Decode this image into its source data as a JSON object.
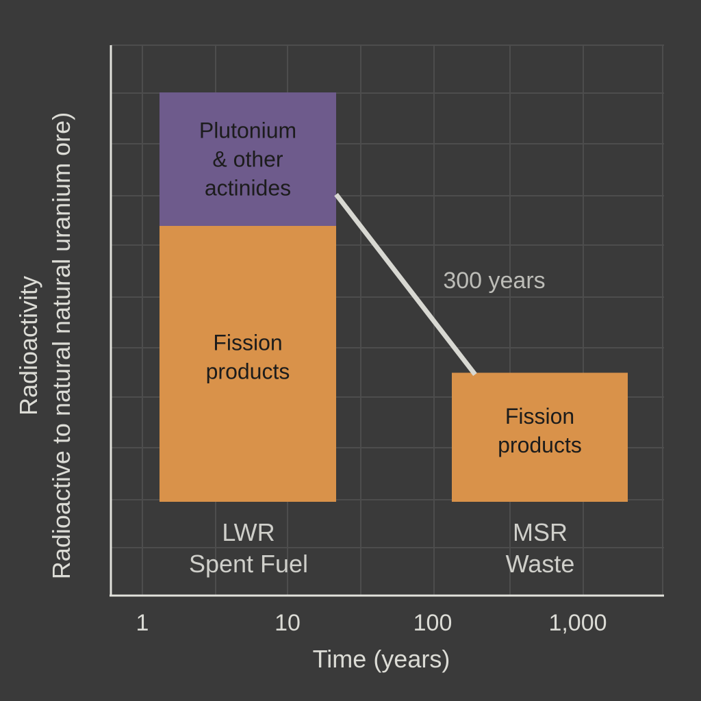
{
  "chart_data": {
    "type": "bar",
    "x_scale": "log",
    "grid": true,
    "xlabel": "Time (years)",
    "ylabel": "Radioactivity",
    "ylabel_line2": "Radioactive to natural natural uranium ore)",
    "x_ticks": [
      {
        "value": 1,
        "label": "1"
      },
      {
        "value": 10,
        "label": "10"
      },
      {
        "value": 100,
        "label": "100"
      },
      {
        "value": 1000,
        "label": "1,000"
      }
    ],
    "bars": [
      {
        "label_line1": "LWR",
        "label_line2": "Spent Fuel",
        "segments": [
          {
            "name_lines": [
              "Fission",
              "products"
            ],
            "value": 0.62,
            "color": "#d9924a"
          },
          {
            "name_lines": [
              "Plutonium",
              "& other",
              "actinides"
            ],
            "value": 0.3,
            "color": "#6e5b8c"
          }
        ]
      },
      {
        "label_line1": "MSR",
        "label_line2": "Waste",
        "segments": [
          {
            "name_lines": [
              "Fission",
              "products"
            ],
            "value": 0.29,
            "color": "#d9924a"
          }
        ]
      }
    ],
    "annotation": "300 years",
    "colors": {
      "background": "#3a3a3a",
      "grid": "#4d4d4d",
      "axis": "#e2e2dc",
      "connector": "#d8d8d2"
    }
  }
}
